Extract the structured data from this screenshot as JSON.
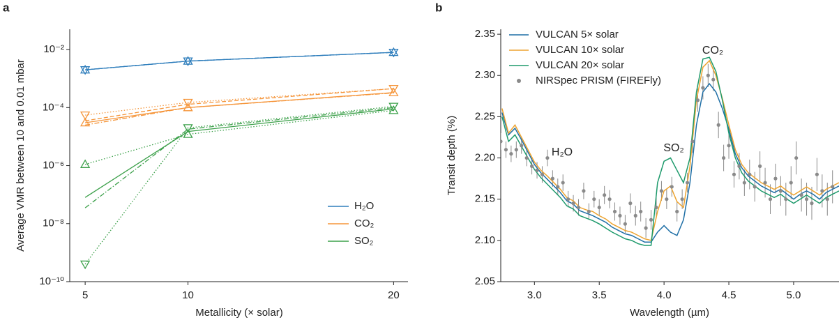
{
  "chart_data": [
    {
      "panel_label": "a",
      "type": "line",
      "xlabel": "Metallicity (× solar)",
      "ylabel": "Average VMR between 10 and 0.01 mbar",
      "x": [
        5,
        10,
        20
      ],
      "xlim": [
        4.25,
        20.7
      ],
      "xticks": [
        5,
        10,
        20
      ],
      "yscale": "log",
      "ylim": [
        1e-10,
        0.05
      ],
      "yticks": [
        {
          "value": 1e-10,
          "label": "10⁻¹⁰"
        },
        {
          "value": 1e-08,
          "label": "10⁻⁸"
        },
        {
          "value": 1e-06,
          "label": "10⁻⁶"
        },
        {
          "value": 0.0001,
          "label": "10⁻⁴"
        },
        {
          "value": 0.01,
          "label": "10⁻²"
        }
      ],
      "legend": "lower right",
      "series": [
        {
          "name": "H₂O",
          "color": "#2f7ebc",
          "variants": [
            {
              "linestyle": "solid",
              "marker": "up",
              "values": [
                0.002,
                0.004,
                0.008
              ]
            },
            {
              "linestyle": "dashed",
              "marker": null,
              "values": [
                0.002,
                0.004,
                0.008
              ]
            },
            {
              "linestyle": "dashdot",
              "marker": null,
              "values": [
                0.002,
                0.004,
                0.008
              ]
            },
            {
              "linestyle": "dotted",
              "marker": "down",
              "values": [
                0.002,
                0.004,
                0.008
              ]
            }
          ]
        },
        {
          "name": "CO₂",
          "color": "#f5953a",
          "variants": [
            {
              "linestyle": "solid",
              "marker": "up",
              "values": [
                3e-05,
                0.0001,
                0.00033
              ]
            },
            {
              "linestyle": "dashed",
              "marker": null,
              "values": [
                3.5e-05,
                0.00013,
                0.00045
              ]
            },
            {
              "linestyle": "dashdot",
              "marker": null,
              "values": [
                2.5e-05,
                0.0001,
                0.00032
              ]
            },
            {
              "linestyle": "dotted",
              "marker": "down",
              "values": [
                5.5e-05,
                0.00015,
                0.00045
              ]
            }
          ]
        },
        {
          "name": "SO₂",
          "color": "#3ca04a",
          "variants": [
            {
              "linestyle": "solid",
              "marker": null,
              "values": [
                8e-08,
                1.5e-05,
                9e-05
              ]
            },
            {
              "linestyle": "dashdot",
              "marker": null,
              "values": [
                3.5e-08,
                1.8e-05,
                0.0001
              ]
            },
            {
              "linestyle": "dotted",
              "marker": "up",
              "values": [
                1.1e-06,
                1.2e-05,
                8e-05
              ]
            },
            {
              "linestyle": "dotted",
              "marker": "down",
              "values": [
                4e-10,
                2e-05,
                0.00011
              ]
            }
          ]
        }
      ]
    },
    {
      "panel_label": "b",
      "type": "line",
      "xlabel": "Wavelength (µm)",
      "ylabel": "Transit depth (%)",
      "xlim": [
        2.74,
        5.35
      ],
      "xticks": [
        {
          "value": 3,
          "label": "3.0"
        },
        3.5,
        {
          "value": 4,
          "label": "4.0"
        },
        4.5,
        {
          "value": 5,
          "label": "5.0"
        }
      ],
      "ylim": [
        2.05,
        2.356
      ],
      "yticks": [
        2.05,
        {
          "value": 2.1,
          "label": "2.10"
        },
        2.15,
        {
          "value": 2.2,
          "label": "2.20"
        },
        2.25,
        {
          "value": 2.3,
          "label": "2.30"
        },
        2.35
      ],
      "legend": "upper left",
      "annotations": [
        "H₂O",
        "SO₂",
        "CO₂"
      ],
      "x": [
        2.75,
        2.8,
        2.85,
        2.9,
        2.95,
        3,
        3.05,
        3.1,
        3.15,
        3.2,
        3.25,
        3.3,
        3.35,
        3.4,
        3.45,
        3.5,
        3.55,
        3.6,
        3.65,
        3.7,
        3.75,
        3.8,
        3.85,
        3.9,
        3.95,
        4,
        4.05,
        4.1,
        4.15,
        4.2,
        4.25,
        4.3,
        4.35,
        4.4,
        4.45,
        4.5,
        4.55,
        4.6,
        4.65,
        4.7,
        4.75,
        4.8,
        4.85,
        4.9,
        4.95,
        5,
        5.05,
        5.1,
        5.15,
        5.2,
        5.25,
        5.3,
        5.35
      ],
      "series": [
        {
          "name": "VULCAN 5× solar",
          "color": "#1f6fa6",
          "values": [
            2.255,
            2.228,
            2.236,
            2.222,
            2.207,
            2.192,
            2.182,
            2.174,
            2.166,
            2.158,
            2.148,
            2.144,
            2.136,
            2.133,
            2.13,
            2.126,
            2.122,
            2.116,
            2.112,
            2.108,
            2.106,
            2.102,
            2.098,
            2.098,
            2.11,
            2.118,
            2.11,
            2.106,
            2.125,
            2.17,
            2.24,
            2.28,
            2.29,
            2.28,
            2.26,
            2.235,
            2.205,
            2.188,
            2.178,
            2.172,
            2.166,
            2.162,
            2.158,
            2.162,
            2.156,
            2.15,
            2.156,
            2.16,
            2.156,
            2.15,
            2.158,
            2.162,
            2.166
          ]
        },
        {
          "name": "VULCAN 10× solar",
          "color": "#eda431",
          "values": [
            2.26,
            2.23,
            2.24,
            2.225,
            2.21,
            2.195,
            2.185,
            2.178,
            2.17,
            2.162,
            2.152,
            2.148,
            2.14,
            2.137,
            2.135,
            2.13,
            2.126,
            2.12,
            2.116,
            2.112,
            2.11,
            2.106,
            2.102,
            2.1,
            2.135,
            2.16,
            2.166,
            2.147,
            2.14,
            2.19,
            2.27,
            2.31,
            2.318,
            2.3,
            2.272,
            2.24,
            2.21,
            2.192,
            2.182,
            2.176,
            2.17,
            2.166,
            2.162,
            2.166,
            2.16,
            2.155,
            2.16,
            2.165,
            2.16,
            2.155,
            2.162,
            2.166,
            2.17
          ]
        },
        {
          "name": "VULCAN 20× solar",
          "color": "#1e9a6c",
          "values": [
            2.25,
            2.22,
            2.228,
            2.214,
            2.2,
            2.186,
            2.176,
            2.168,
            2.16,
            2.152,
            2.142,
            2.138,
            2.13,
            2.127,
            2.124,
            2.12,
            2.115,
            2.11,
            2.106,
            2.102,
            2.1,
            2.096,
            2.094,
            2.094,
            2.17,
            2.196,
            2.2,
            2.185,
            2.17,
            2.2,
            2.28,
            2.32,
            2.322,
            2.305,
            2.27,
            2.23,
            2.2,
            2.182,
            2.172,
            2.166,
            2.16,
            2.156,
            2.152,
            2.156,
            2.15,
            2.145,
            2.15,
            2.155,
            2.15,
            2.145,
            2.152,
            2.156,
            2.16
          ]
        }
      ],
      "data": {
        "name": "NIRSpec PRISM (FIREFly)",
        "color": "#8a8a8a",
        "x": [
          2.74,
          2.78,
          2.82,
          2.86,
          2.9,
          2.94,
          2.98,
          3.02,
          3.06,
          3.1,
          3.14,
          3.18,
          3.22,
          3.26,
          3.3,
          3.34,
          3.38,
          3.42,
          3.46,
          3.5,
          3.54,
          3.58,
          3.62,
          3.66,
          3.7,
          3.74,
          3.78,
          3.82,
          3.86,
          3.9,
          3.94,
          3.98,
          4.02,
          4.06,
          4.1,
          4.14,
          4.18,
          4.22,
          4.26,
          4.3,
          4.34,
          4.38,
          4.42,
          4.46,
          4.5,
          4.54,
          4.58,
          4.62,
          4.66,
          4.7,
          4.74,
          4.78,
          4.82,
          4.86,
          4.9,
          4.94,
          4.98,
          5.02,
          5.06,
          5.1,
          5.14,
          5.18,
          5.22,
          5.26,
          5.3
        ],
        "y": [
          2.22,
          2.21,
          2.205,
          2.21,
          2.215,
          2.2,
          2.19,
          2.185,
          2.18,
          2.2,
          2.175,
          2.165,
          2.17,
          2.15,
          2.145,
          2.14,
          2.16,
          2.135,
          2.15,
          2.14,
          2.155,
          2.15,
          2.135,
          2.13,
          2.12,
          2.145,
          2.13,
          2.135,
          2.115,
          2.125,
          2.14,
          2.16,
          2.15,
          2.165,
          2.135,
          2.15,
          2.17,
          2.22,
          2.27,
          2.285,
          2.3,
          2.295,
          2.24,
          2.2,
          2.215,
          2.18,
          2.19,
          2.17,
          2.18,
          2.165,
          2.19,
          2.17,
          2.15,
          2.175,
          2.16,
          2.15,
          2.17,
          2.2,
          2.155,
          2.15,
          2.145,
          2.18,
          2.16,
          2.15,
          2.165
        ],
        "yerr": [
          0.01,
          0.01,
          0.01,
          0.01,
          0.01,
          0.01,
          0.01,
          0.01,
          0.01,
          0.01,
          0.01,
          0.01,
          0.01,
          0.01,
          0.01,
          0.01,
          0.01,
          0.01,
          0.01,
          0.01,
          0.011,
          0.011,
          0.011,
          0.011,
          0.011,
          0.012,
          0.012,
          0.012,
          0.012,
          0.012,
          0.012,
          0.012,
          0.012,
          0.012,
          0.012,
          0.012,
          0.012,
          0.014,
          0.014,
          0.014,
          0.014,
          0.014,
          0.016,
          0.016,
          0.016,
          0.016,
          0.016,
          0.016,
          0.018,
          0.018,
          0.018,
          0.018,
          0.018,
          0.018,
          0.018,
          0.02,
          0.02,
          0.02,
          0.02,
          0.02,
          0.02,
          0.02,
          0.02,
          0.02,
          0.02
        ]
      }
    }
  ]
}
